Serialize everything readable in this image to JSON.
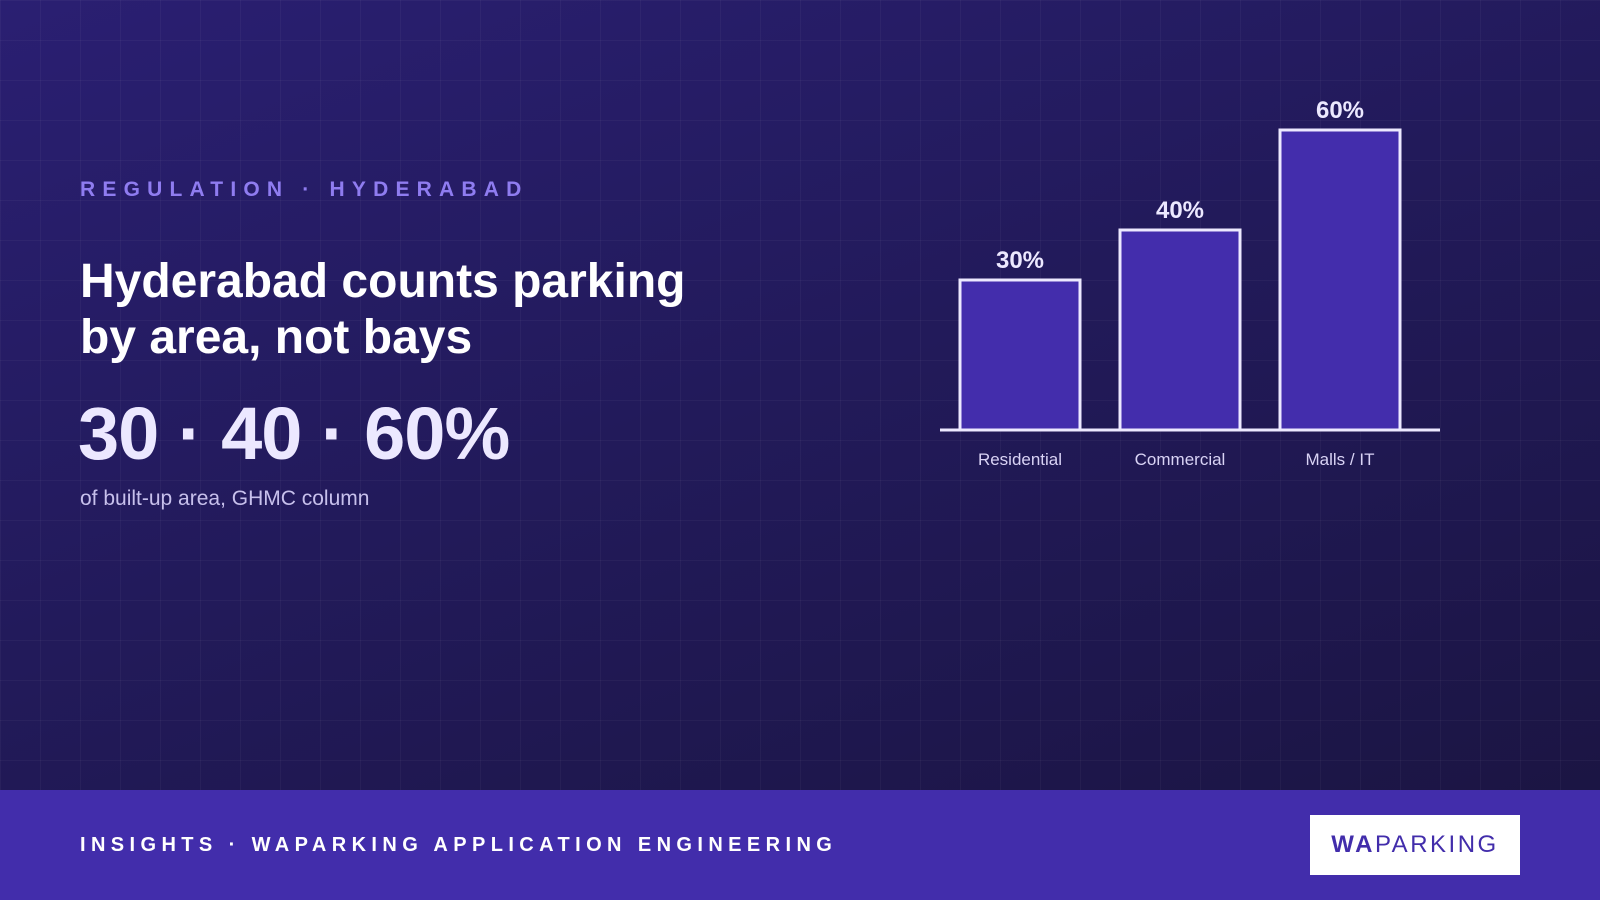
{
  "eyebrow": "REGULATION · HYDERABAD",
  "headline": {
    "line1": "Hyderabad counts parking",
    "line2": "by area, not bays"
  },
  "big_stat": "30 · 40 · 60%",
  "caption": "of built-up area, GHMC column",
  "footer": {
    "text": "INSIGHTS · WAPARKING APPLICATION ENGINEERING",
    "logo_strong": "WA",
    "logo_light": "PARKING"
  },
  "colors": {
    "accent": "#8f7cf0",
    "bar_fill": "#432dac",
    "bar_stroke": "#ece8ff",
    "footer_bg": "#422dab"
  },
  "chart_data": {
    "type": "bar",
    "categories": [
      "Residential",
      "Commercial",
      "Malls / IT"
    ],
    "values": [
      30,
      40,
      60
    ],
    "data_labels": [
      "30%",
      "40%",
      "60%"
    ],
    "ylim": [
      0,
      60
    ],
    "grid": false,
    "legend": "none"
  }
}
